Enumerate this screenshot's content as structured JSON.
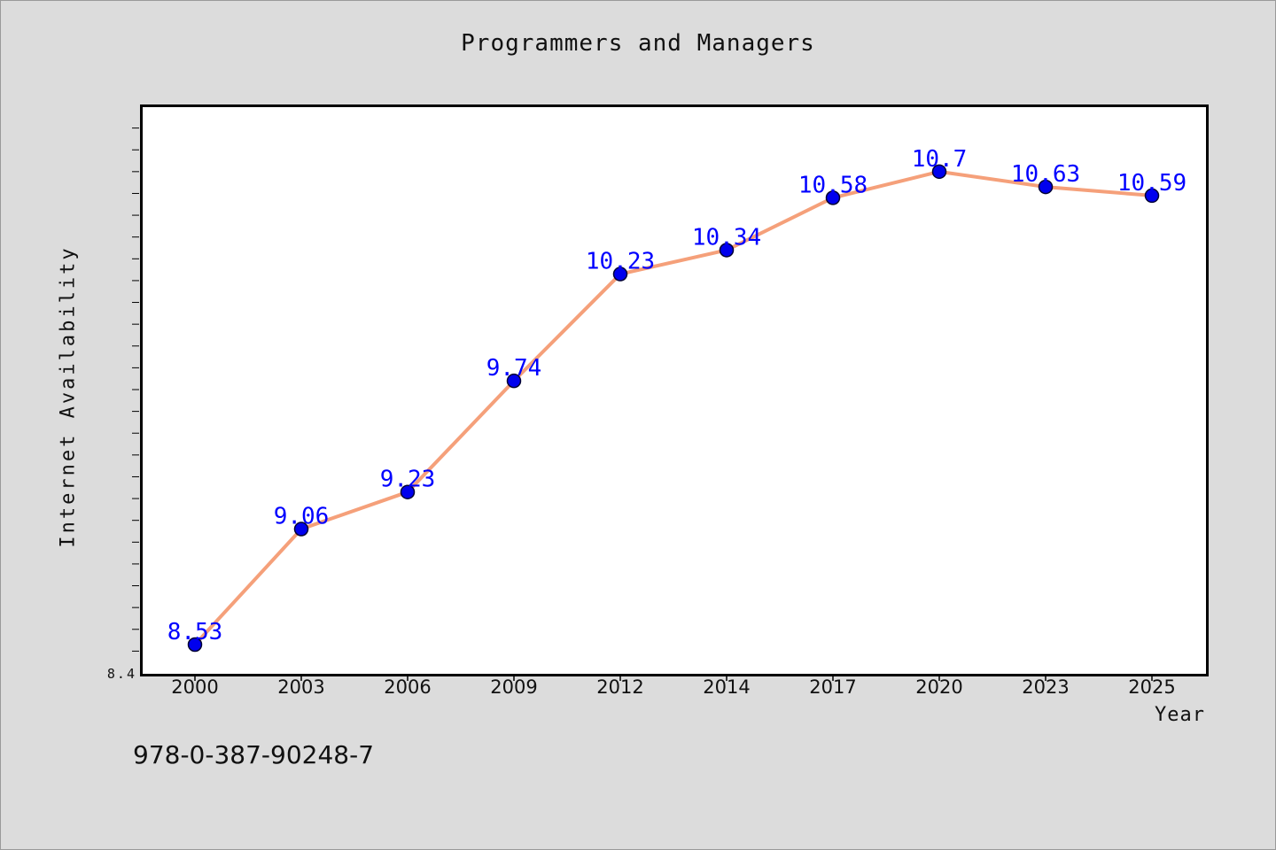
{
  "chart_data": {
    "type": "line",
    "title": "Programmers and Managers",
    "xlabel": "Year",
    "ylabel": "Internet Availability",
    "categories": [
      "2000",
      "2003",
      "2006",
      "2009",
      "2012",
      "2014",
      "2017",
      "2020",
      "2023",
      "2025"
    ],
    "series": [
      {
        "values": [
          8.53,
          9.06,
          9.23,
          9.74,
          10.23,
          10.34,
          10.58,
          10.7,
          10.63,
          10.59
        ],
        "line_color": "#f5a07a",
        "marker_color": "#0000ee",
        "label_color": "#0000ff"
      }
    ],
    "ylim": [
      8.4,
      11.0
    ],
    "y_tick_labels": [
      "8.4"
    ],
    "y_minor_tick_step": 0.1,
    "grid": false,
    "data_labels": [
      "8.53",
      "9.06",
      "9.23",
      "9.74",
      "10.23",
      "10.34",
      "10.58",
      "10.7",
      "10.63",
      "10.59"
    ]
  },
  "footer": {
    "code": "978-0-387-90248-7"
  },
  "colors": {
    "background": "#dcdcdc",
    "plot_background": "#ffffff"
  }
}
